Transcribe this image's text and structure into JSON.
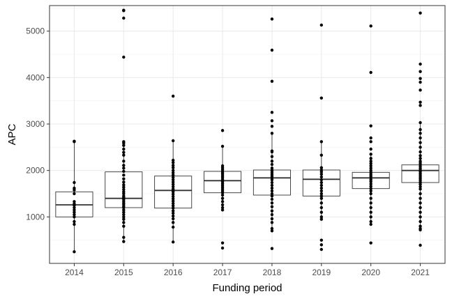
{
  "chart_data": {
    "type": "box",
    "xlabel": "Funding period",
    "ylabel": "APC",
    "ylim": [
      0,
      5550
    ],
    "yticks": [
      1000,
      2000,
      3000,
      4000,
      5000
    ],
    "grid": true,
    "theme": "bw",
    "categories": [
      "2014",
      "2015",
      "2016",
      "2017",
      "2018",
      "2019",
      "2020",
      "2021"
    ],
    "boxes": [
      {
        "q1": 1000,
        "median": 1260,
        "q3": 1540,
        "whisker_low": 250,
        "whisker_high": 2630
      },
      {
        "q1": 1200,
        "median": 1400,
        "q3": 1970,
        "whisker_low": 470,
        "whisker_high": 2620
      },
      {
        "q1": 1190,
        "median": 1570,
        "q3": 1880,
        "whisker_low": 460,
        "whisker_high": 2640
      },
      {
        "q1": 1520,
        "median": 1780,
        "q3": 1980,
        "whisker_low": 1150,
        "whisker_high": 2520
      },
      {
        "q1": 1470,
        "median": 1840,
        "q3": 2010,
        "whisker_low": 700,
        "whisker_high": 2800
      },
      {
        "q1": 1450,
        "median": 1810,
        "q3": 2010,
        "whisker_low": 950,
        "whisker_high": 2620
      },
      {
        "q1": 1610,
        "median": 1840,
        "q3": 1960,
        "whisker_low": 840,
        "whisker_high": 2350
      },
      {
        "q1": 1740,
        "median": 2000,
        "q3": 2120,
        "whisker_low": 800,
        "whisker_high": 3030
      }
    ],
    "points": [
      [
        250,
        840,
        900,
        1000,
        1050,
        1100,
        1150,
        1200,
        1250,
        1280,
        1330,
        1500,
        1580,
        1620,
        1740,
        2620,
        2630
      ],
      [
        470,
        560,
        800,
        880,
        950,
        1000,
        1050,
        1100,
        1150,
        1200,
        1230,
        1270,
        1300,
        1340,
        1380,
        1400,
        1420,
        1450,
        1500,
        1540,
        1590,
        1640,
        1690,
        1750,
        1820,
        1900,
        1980,
        2050,
        2110,
        2200,
        2330,
        2390,
        2460,
        2540,
        2590,
        2620,
        4440,
        5280,
        5440,
        5450
      ],
      [
        460,
        780,
        880,
        960,
        1020,
        1080,
        1130,
        1190,
        1240,
        1290,
        1340,
        1390,
        1440,
        1490,
        1540,
        1570,
        1600,
        1650,
        1700,
        1750,
        1800,
        1850,
        1900,
        1950,
        2000,
        2060,
        2110,
        2170,
        2220,
        2640,
        3600
      ],
      [
        330,
        440,
        1150,
        1200,
        1260,
        1330,
        1400,
        1470,
        1520,
        1560,
        1600,
        1640,
        1680,
        1720,
        1760,
        1800,
        1840,
        1880,
        1920,
        1950,
        1980,
        2020,
        2060,
        2100,
        2520,
        2860
      ],
      [
        320,
        700,
        750,
        880,
        960,
        1050,
        1130,
        1220,
        1300,
        1380,
        1450,
        1500,
        1560,
        1620,
        1680,
        1740,
        1800,
        1840,
        1880,
        1920,
        1960,
        2000,
        2050,
        2130,
        2200,
        2300,
        2400,
        2420,
        2800,
        2950,
        3070,
        3250,
        3920,
        4590,
        5260
      ],
      [
        300,
        400,
        500,
        950,
        1000,
        1100,
        1200,
        1300,
        1400,
        1450,
        1500,
        1560,
        1620,
        1680,
        1740,
        1800,
        1860,
        1920,
        1970,
        2010,
        2060,
        2330,
        2620,
        3560,
        5130
      ],
      [
        440,
        840,
        900,
        1000,
        1100,
        1200,
        1300,
        1400,
        1500,
        1560,
        1610,
        1660,
        1710,
        1760,
        1800,
        1840,
        1880,
        1920,
        1960,
        2000,
        2050,
        2100,
        2150,
        2200,
        2260,
        2350,
        2460,
        2620,
        2700,
        2960,
        4110,
        5110
      ],
      [
        390,
        720,
        750,
        800,
        900,
        1000,
        1100,
        1200,
        1300,
        1400,
        1500,
        1600,
        1650,
        1700,
        1740,
        1780,
        1820,
        1860,
        1900,
        1940,
        1980,
        2000,
        2040,
        2080,
        2120,
        2160,
        2200,
        2260,
        2320,
        2400,
        2500,
        2600,
        2700,
        2800,
        2880,
        3030,
        3400,
        3470,
        3730,
        3900,
        3980,
        4130,
        4290,
        5390
      ]
    ]
  }
}
